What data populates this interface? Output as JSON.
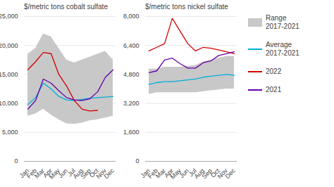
{
  "chart_data": [
    {
      "type": "line",
      "title": "$/metric tons cobalt sulfate",
      "categories": [
        "Jan",
        "Feb",
        "Mar",
        "Apr",
        "May",
        "Jun",
        "Jul",
        "Aug",
        "Sep",
        "Oct",
        "Nov",
        "Dec"
      ],
      "ylim": [
        0,
        25000
      ],
      "yticks": [
        0,
        {
          "value": 5000,
          "label": "5,000"
        },
        {
          "value": 10000,
          "label": "10,000"
        },
        {
          "value": 15000,
          "label": "15,000"
        },
        {
          "value": 20000,
          "label": "20,000"
        },
        {
          "value": 25000,
          "label": "25,000"
        }
      ],
      "grid": true,
      "series": [
        {
          "name": "Range\n2017-2021",
          "type": "area",
          "color": "#c8c8c8",
          "low": [
            7800,
            8200,
            9000,
            8000,
            7200,
            6500,
            6400,
            6600,
            7000,
            7200,
            7500,
            7800
          ],
          "high": [
            18500,
            19500,
            22000,
            21500,
            19500,
            17500,
            17000,
            17500,
            18000,
            18500,
            19000,
            17500
          ]
        },
        {
          "name": "Average\n2017-2021",
          "type": "line",
          "color": "#00b0d8",
          "values": [
            9800,
            11000,
            13500,
            12500,
            11200,
            10600,
            10500,
            10700,
            10900,
            11000,
            11100,
            11200
          ]
        },
        {
          "name": "2022",
          "type": "line",
          "color": "#d40000",
          "values": [
            15800,
            17200,
            18800,
            18600,
            15000,
            13000,
            10500,
            9000,
            8700,
            8800,
            null,
            null
          ]
        },
        {
          "name": "2021",
          "type": "line",
          "color": "#6600aa",
          "values": [
            9000,
            10500,
            14200,
            13500,
            12200,
            11000,
            10600,
            10500,
            10800,
            12000,
            14500,
            15800
          ]
        }
      ]
    },
    {
      "type": "line",
      "title": "$/metric tons nickel sulfate",
      "categories": [
        "Jan",
        "Feb",
        "Mar",
        "Apr",
        "May",
        "Jun",
        "Jul",
        "Aug",
        "Sep",
        "Oct",
        "Nov",
        "Dec"
      ],
      "ylim": [
        0,
        8000
      ],
      "yticks": [
        0,
        {
          "value": 1600,
          "label": "1,600"
        },
        {
          "value": 3200,
          "label": "3,200"
        },
        {
          "value": 4800,
          "label": "4,800"
        },
        {
          "value": 6400,
          "label": "6,400"
        },
        {
          "value": 8000,
          "label": "8,000"
        }
      ],
      "grid": true,
      "legend": "right",
      "series": [
        {
          "name": "Range\n2017-2021",
          "type": "area",
          "color": "#c8c8c8",
          "low": [
            3700,
            3800,
            3800,
            3800,
            3800,
            3800,
            3800,
            3850,
            3900,
            3950,
            4000,
            4000
          ],
          "high": [
            5100,
            5100,
            5200,
            5200,
            5200,
            5250,
            5300,
            5500,
            5600,
            5700,
            5800,
            5800
          ]
        },
        {
          "name": "Average\n2017-2021",
          "type": "line",
          "color": "#00b0d8",
          "values": [
            4250,
            4350,
            4400,
            4400,
            4450,
            4500,
            4550,
            4650,
            4700,
            4750,
            4800,
            4750
          ]
        },
        {
          "name": "2022",
          "type": "line",
          "color": "#d40000",
          "values": [
            6100,
            6300,
            6500,
            7900,
            7200,
            6500,
            6100,
            6300,
            6250,
            6150,
            6050,
            5950
          ]
        },
        {
          "name": "2021",
          "type": "line",
          "color": "#6600aa",
          "values": [
            4900,
            5000,
            5600,
            5700,
            5400,
            5150,
            5150,
            5450,
            5550,
            5850,
            5950,
            6050
          ]
        }
      ]
    }
  ]
}
